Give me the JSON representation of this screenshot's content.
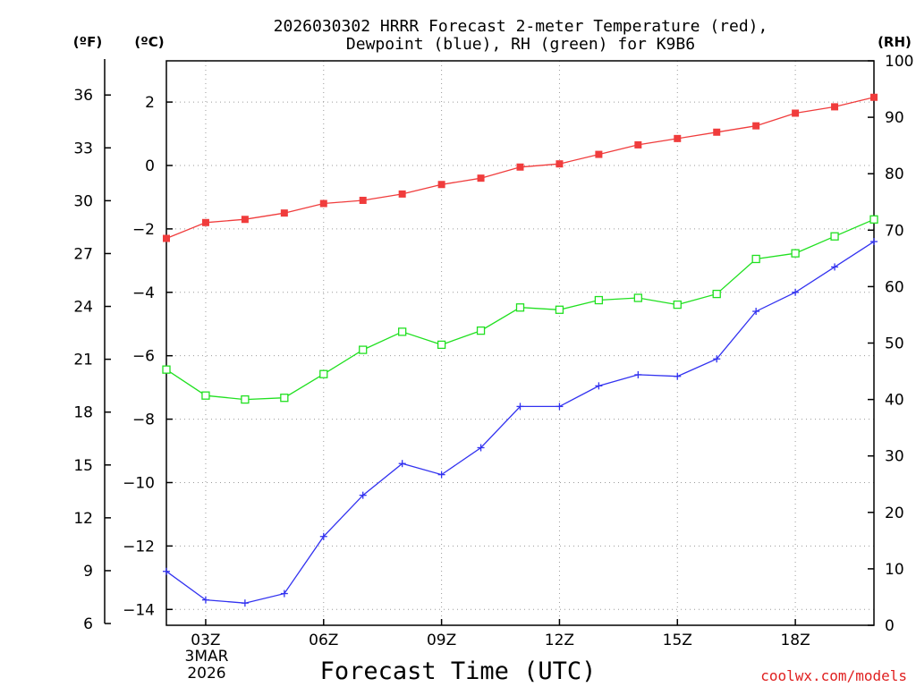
{
  "chart_data": {
    "type": "line",
    "title_line1": "2026030302 HRRR Forecast 2-meter Temperature (red),",
    "title_line2": "Dewpoint (blue), RH (green) for K9B6",
    "xlabel": "Forecast Time (UTC)",
    "credit": "coolwx.com/models",
    "credit_color": "#e02020",
    "units": {
      "left_f": "(ºF)",
      "left_c": "(ºC)",
      "right_rh": "(RH)"
    },
    "x_hours": [
      2,
      3,
      4,
      5,
      6,
      7,
      8,
      9,
      10,
      11,
      12,
      13,
      14,
      15,
      16,
      17,
      18,
      19,
      20
    ],
    "xlim": [
      2,
      20
    ],
    "x_ticks": [
      {
        "hour": 3,
        "label": "03Z"
      },
      {
        "hour": 6,
        "label": "06Z"
      },
      {
        "hour": 9,
        "label": "09Z"
      },
      {
        "hour": 12,
        "label": "12Z"
      },
      {
        "hour": 15,
        "label": "15Z"
      },
      {
        "hour": 18,
        "label": "18Z"
      }
    ],
    "date_labels": [
      "3MAR",
      "2026"
    ],
    "ylim_c": [
      -14.5,
      3.3
    ],
    "y_ticks_c": [
      2,
      0,
      -2,
      -4,
      -6,
      -8,
      -10,
      -12,
      -14
    ],
    "y_tick_labels_c": [
      "2",
      "0",
      "−2",
      "−4",
      "−6",
      "−8",
      "−10",
      "−12",
      "−14"
    ],
    "y_ticks_f": [
      36,
      33,
      30,
      27,
      24,
      21,
      18,
      15,
      12,
      9,
      6
    ],
    "y_tick_labels_f": [
      "36",
      "33",
      "30",
      "27",
      "24",
      "21",
      "18",
      "15",
      "12",
      "9",
      "6"
    ],
    "ylim_rh": [
      0,
      100
    ],
    "y_ticks_rh": [
      100,
      90,
      80,
      70,
      60,
      50,
      40,
      30,
      20,
      10,
      0
    ],
    "y_tick_labels_rh": [
      "100",
      "90",
      "80",
      "70",
      "60",
      "50",
      "40",
      "30",
      "20",
      "10",
      "0"
    ],
    "series": [
      {
        "name": "Temperature",
        "unit": "C",
        "axis": "left",
        "color": "#f03c3c",
        "marker": "filled-square",
        "values": [
          -2.3,
          -1.8,
          -1.7,
          -1.5,
          -1.2,
          -1.1,
          -0.9,
          -0.6,
          -0.4,
          -0.05,
          0.05,
          0.35,
          0.65,
          0.85,
          1.05,
          1.25,
          1.65,
          1.85,
          2.15
        ]
      },
      {
        "name": "Dewpoint",
        "unit": "C",
        "axis": "left",
        "color": "#3232f0",
        "marker": "plus",
        "values": [
          -12.8,
          -13.7,
          -13.8,
          -13.5,
          -11.7,
          -10.4,
          -9.4,
          -9.75,
          -8.9,
          -7.6,
          -7.6,
          -6.95,
          -6.6,
          -6.65,
          -6.1,
          -4.6,
          -4.0,
          -3.2,
          -2.4
        ]
      },
      {
        "name": "RH",
        "unit": "%",
        "axis": "right",
        "color": "#20e020",
        "marker": "open-square",
        "values": [
          45.3,
          40.7,
          40.0,
          40.3,
          44.5,
          48.8,
          52.0,
          49.7,
          52.2,
          56.3,
          55.9,
          57.6,
          58.0,
          56.8,
          58.7,
          64.9,
          65.9,
          68.9,
          71.9
        ]
      }
    ]
  }
}
